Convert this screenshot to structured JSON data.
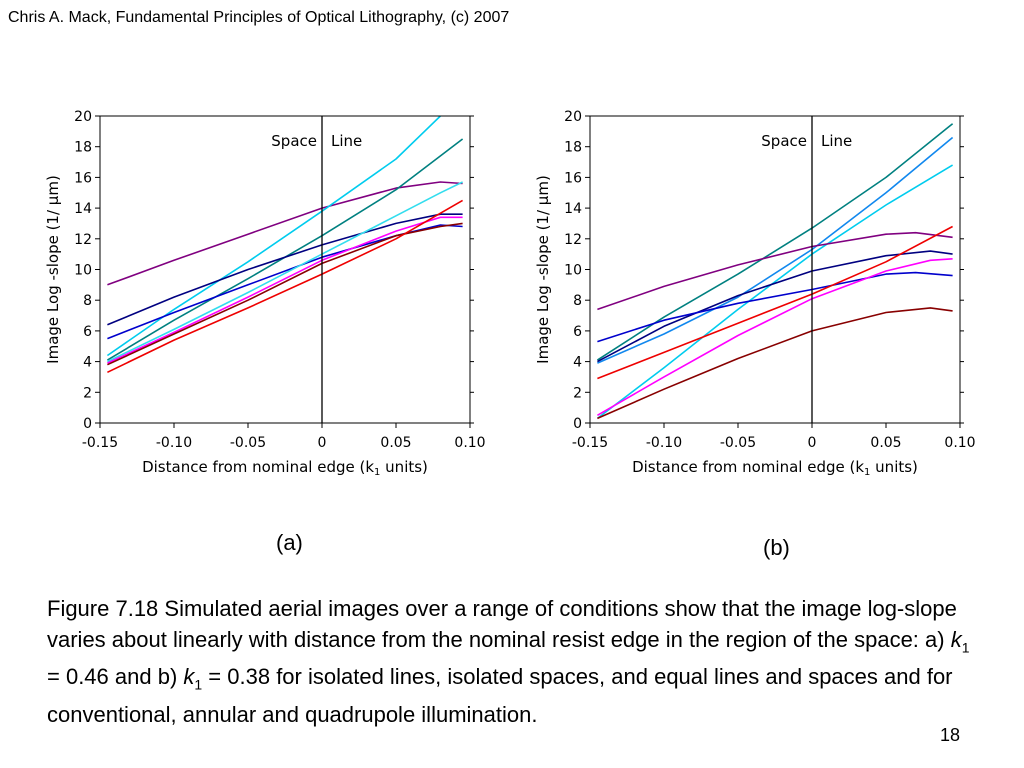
{
  "header": {
    "title": "Chris A. Mack, Fundamental Principles of Optical Lithography, (c) 2007"
  },
  "panels": {
    "a": "(a)",
    "b": "(b)"
  },
  "caption": {
    "part1": "Figure 7.18  Simulated aerial images over a range of conditions show that the image log-slope varies about linearly with distance from the nominal resist edge in the region of the space:  a) ",
    "k_symbol": "k",
    "k_subscript": "1",
    "part2": " = 0.46 and b) ",
    "part3": " = 0.38 for isolated lines, isolated spaces, and equal lines and spaces and for conventional, annular and quadrupole illumination."
  },
  "page_number": "18",
  "chart_data": [
    {
      "type": "line",
      "panel": "(a)",
      "xlabel_prefix": "Distance from nominal edge (k",
      "xlabel_sub": "1",
      "xlabel_suffix": " units)",
      "ylabel": "Image Log -slope (1/ μm)",
      "xlim": [
        -0.15,
        0.1
      ],
      "ylim": [
        0,
        20
      ],
      "xticks": [
        -0.15,
        -0.1,
        -0.05,
        0,
        0.05,
        0.1
      ],
      "xtick_labels": [
        "-0.15",
        "-0.10",
        "-0.05",
        "0",
        "0.05",
        "0.10"
      ],
      "yticks": [
        0,
        2,
        4,
        6,
        8,
        10,
        12,
        14,
        16,
        18,
        20
      ],
      "ytick_labels": [
        "0",
        "2",
        "4",
        "6",
        "8",
        "10",
        "12",
        "14",
        "16",
        "18",
        "20"
      ],
      "vline_x": 0,
      "region_labels": {
        "left": "Space",
        "right": "Line"
      },
      "grid": false,
      "series": [
        {
          "color": "#800080",
          "x": [
            -0.145,
            -0.1,
            -0.05,
            0,
            0.05,
            0.08,
            0.095
          ],
          "y": [
            9.0,
            10.6,
            12.3,
            14.0,
            15.3,
            15.7,
            15.6
          ]
        },
        {
          "color": "#00CCEE",
          "x": [
            -0.145,
            -0.1,
            -0.05,
            0,
            0.05,
            0.08
          ],
          "y": [
            4.4,
            7.4,
            10.5,
            13.8,
            17.2,
            20.0
          ]
        },
        {
          "color": "#008080",
          "x": [
            -0.145,
            -0.1,
            -0.05,
            0,
            0.05,
            0.095
          ],
          "y": [
            4.1,
            6.7,
            9.4,
            12.2,
            15.2,
            18.5
          ]
        },
        {
          "color": "#000080",
          "x": [
            -0.145,
            -0.1,
            -0.05,
            0,
            0.05,
            0.08,
            0.095
          ],
          "y": [
            6.4,
            8.2,
            10.0,
            11.6,
            13.0,
            13.6,
            13.6
          ]
        },
        {
          "color": "#0000CC",
          "x": [
            -0.145,
            -0.1,
            -0.05,
            0,
            0.05,
            0.08,
            0.095
          ],
          "y": [
            5.5,
            7.2,
            9.0,
            10.8,
            12.2,
            12.9,
            12.8
          ]
        },
        {
          "color": "#33DDEE",
          "x": [
            -0.145,
            -0.1,
            -0.05,
            0,
            0.05,
            0.08,
            0.095
          ],
          "y": [
            4.0,
            6.1,
            8.5,
            11.0,
            13.5,
            15.0,
            15.7
          ]
        },
        {
          "color": "#FF00FF",
          "x": [
            -0.145,
            -0.1,
            -0.05,
            0,
            0.05,
            0.08,
            0.095
          ],
          "y": [
            3.9,
            5.9,
            8.2,
            10.6,
            12.5,
            13.4,
            13.4
          ]
        },
        {
          "color": "#880000",
          "x": [
            -0.145,
            -0.1,
            -0.05,
            0,
            0.05,
            0.08,
            0.095
          ],
          "y": [
            3.8,
            5.8,
            8.0,
            10.4,
            12.2,
            12.8,
            13.0
          ]
        },
        {
          "color": "#EE0000",
          "x": [
            -0.145,
            -0.1,
            -0.05,
            0,
            0.05,
            0.095
          ],
          "y": [
            3.3,
            5.4,
            7.5,
            9.7,
            12.0,
            14.5
          ]
        }
      ]
    },
    {
      "type": "line",
      "panel": "(b)",
      "xlabel_prefix": "Distance from nominal edge (k",
      "xlabel_sub": "1",
      "xlabel_suffix": " units)",
      "ylabel": "Image Log -slope (1/ μm)",
      "xlim": [
        -0.15,
        0.1
      ],
      "ylim": [
        0,
        20
      ],
      "xticks": [
        -0.15,
        -0.1,
        -0.05,
        0,
        0.05,
        0.1
      ],
      "xtick_labels": [
        "-0.15",
        "-0.10",
        "-0.05",
        "0",
        "0.05",
        "0.10"
      ],
      "yticks": [
        0,
        2,
        4,
        6,
        8,
        10,
        12,
        14,
        16,
        18,
        20
      ],
      "ytick_labels": [
        "0",
        "2",
        "4",
        "6",
        "8",
        "10",
        "12",
        "14",
        "16",
        "18",
        "20"
      ],
      "vline_x": 0,
      "region_labels": {
        "left": "Space",
        "right": "Line"
      },
      "grid": false,
      "series": [
        {
          "color": "#008080",
          "x": [
            -0.145,
            -0.1,
            -0.05,
            0,
            0.05,
            0.095
          ],
          "y": [
            4.1,
            6.9,
            9.7,
            12.7,
            16.0,
            19.5
          ]
        },
        {
          "color": "#1188EE",
          "x": [
            -0.145,
            -0.1,
            -0.05,
            0,
            0.05,
            0.095
          ],
          "y": [
            3.9,
            5.8,
            8.2,
            11.3,
            15.0,
            18.6
          ]
        },
        {
          "color": "#00CCEE",
          "x": [
            -0.145,
            -0.1,
            -0.05,
            0,
            0.05,
            0.095
          ],
          "y": [
            0.3,
            3.6,
            7.4,
            11.0,
            14.2,
            16.8
          ]
        },
        {
          "color": "#800080",
          "x": [
            -0.145,
            -0.1,
            -0.05,
            0,
            0.05,
            0.07,
            0.095
          ],
          "y": [
            7.4,
            8.9,
            10.3,
            11.5,
            12.3,
            12.4,
            12.1
          ]
        },
        {
          "color": "#000080",
          "x": [
            -0.145,
            -0.1,
            -0.05,
            0,
            0.05,
            0.08,
            0.095
          ],
          "y": [
            4.0,
            6.3,
            8.3,
            9.9,
            10.9,
            11.2,
            11.0
          ]
        },
        {
          "color": "#0000CC",
          "x": [
            -0.145,
            -0.1,
            -0.05,
            0,
            0.05,
            0.07,
            0.095
          ],
          "y": [
            5.3,
            6.7,
            7.8,
            8.7,
            9.7,
            9.8,
            9.6
          ]
        },
        {
          "color": "#EE0000",
          "x": [
            -0.145,
            -0.1,
            -0.05,
            0,
            0.05,
            0.095
          ],
          "y": [
            2.9,
            4.6,
            6.5,
            8.4,
            10.5,
            12.8
          ]
        },
        {
          "color": "#FF00FF",
          "x": [
            -0.145,
            -0.1,
            -0.05,
            0,
            0.05,
            0.08,
            0.095
          ],
          "y": [
            0.5,
            3.0,
            5.7,
            8.1,
            9.9,
            10.6,
            10.7
          ]
        },
        {
          "color": "#880000",
          "x": [
            -0.145,
            -0.1,
            -0.05,
            0,
            0.05,
            0.08,
            0.095
          ],
          "y": [
            0.3,
            2.2,
            4.2,
            6.0,
            7.2,
            7.5,
            7.3
          ]
        }
      ]
    }
  ]
}
